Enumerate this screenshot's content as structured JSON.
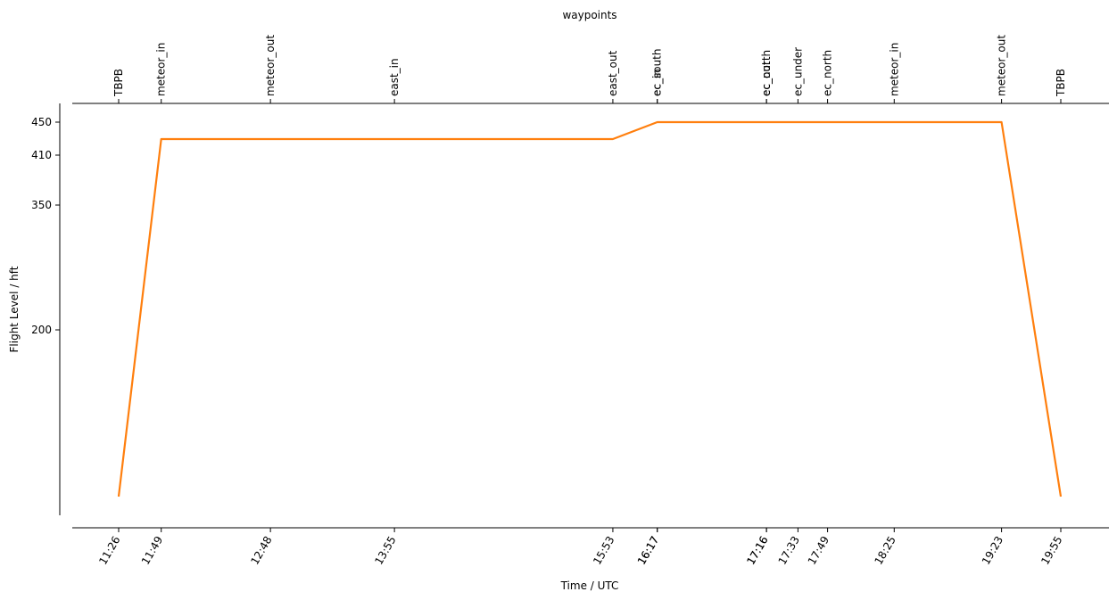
{
  "chart_data": {
    "type": "line",
    "title": "waypoints",
    "xlabel": "Time / UTC",
    "ylabel": "Flight Level / hft",
    "y_ticks": [
      200,
      350,
      410,
      450
    ],
    "y_scale": "pressure-like (non-linear)",
    "grid": false,
    "line_color": "#ff7f0e",
    "x_ticks": [
      "11:26",
      "11:49",
      "12:48",
      "13:55",
      "15:53",
      "16:17",
      "16:17",
      "17:16",
      "17:16",
      "17:33",
      "17:49",
      "18:25",
      "19:23",
      "19:55"
    ],
    "waypoints": [
      "TBPB",
      "meteor_in",
      "meteor_out",
      "east_in",
      "east_out",
      "ec_south",
      "ec_in",
      "ec_north",
      "ec_out",
      "ec_under",
      "ec_north",
      "meteor_in",
      "meteor_out",
      "TBPB"
    ],
    "series": [
      {
        "x": [
          "11:26",
          "11:49",
          "15:53",
          "16:17",
          "17:16",
          "17:33",
          "17:49",
          "18:25",
          "19:23",
          "19:55"
        ],
        "y": [
          0,
          430,
          430,
          450,
          450,
          450,
          450,
          450,
          450,
          0
        ]
      }
    ]
  }
}
